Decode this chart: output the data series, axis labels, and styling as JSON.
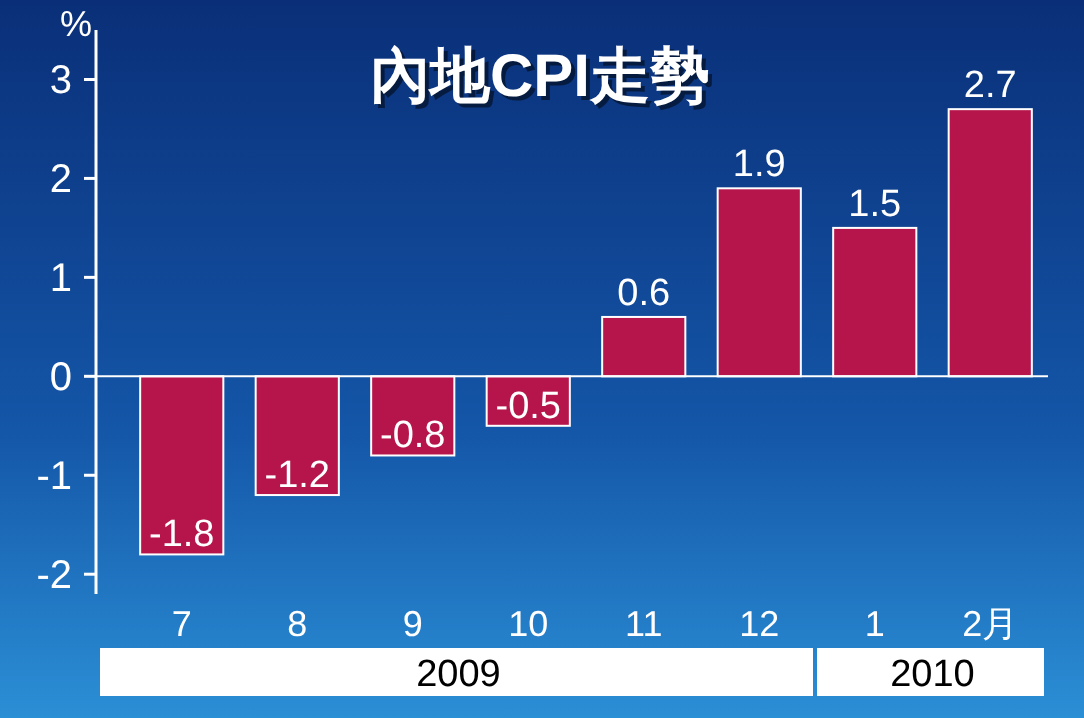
{
  "chart_data": {
    "type": "bar",
    "title": "內地CPI走勢",
    "ylabel": "%",
    "categories": [
      "7",
      "8",
      "9",
      "10",
      "11",
      "12",
      "1",
      "2月"
    ],
    "values": [
      -1.8,
      -1.2,
      -0.8,
      -0.5,
      0.6,
      1.9,
      1.5,
      2.7
    ],
    "color": "#b5154b",
    "data_labels": true,
    "ylim": [
      -2.2,
      3.5
    ],
    "yticks": [
      -2,
      -1,
      0,
      1,
      2,
      3
    ],
    "annotations": [
      "2009",
      "2010"
    ]
  }
}
